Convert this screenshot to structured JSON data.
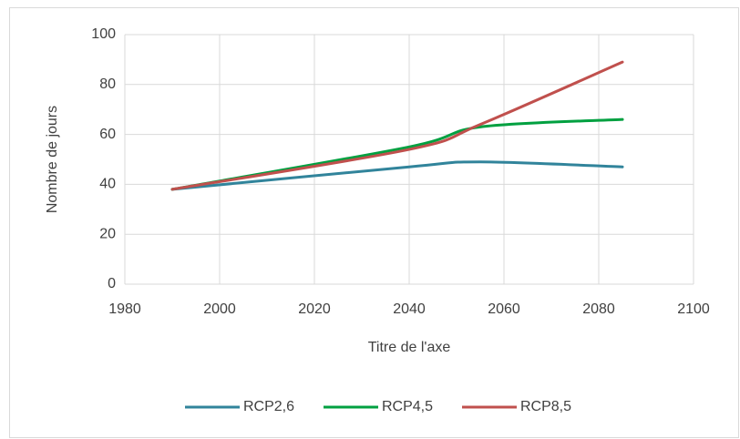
{
  "chart_data": {
    "type": "line",
    "x": [
      1990,
      2040,
      2055,
      2085
    ],
    "series": [
      {
        "name": "RCP2,6",
        "color": "#31849b",
        "values": [
          38,
          47,
          49,
          47
        ]
      },
      {
        "name": "RCP4,5",
        "color": "#00a040",
        "values": [
          38,
          55,
          63,
          66
        ]
      },
      {
        "name": "RCP8,5",
        "color": "#c0504d",
        "values": [
          38,
          54,
          64,
          89
        ]
      }
    ],
    "xlim": [
      1980,
      2100
    ],
    "xticks": [
      1980,
      2000,
      2020,
      2040,
      2060,
      2080,
      2100
    ],
    "ylim": [
      0,
      100
    ],
    "yticks": [
      0,
      20,
      40,
      60,
      80,
      100
    ],
    "xlabel": "Titre de l'axe",
    "ylabel": "Nombre de jours",
    "grid": true,
    "legend": "bottom"
  }
}
